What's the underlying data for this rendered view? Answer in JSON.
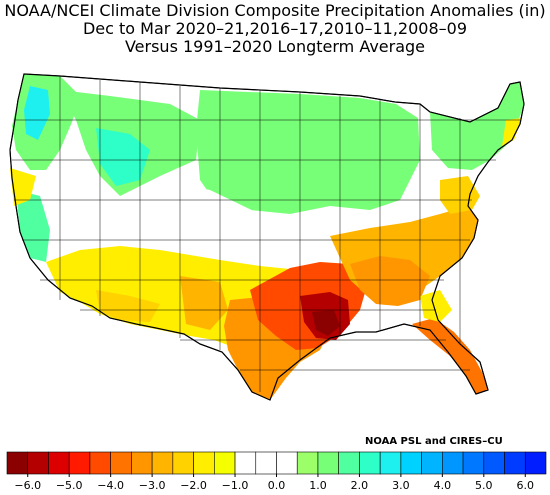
{
  "header": {
    "line1": "NOAA/NCEI Climate Division Composite Precipitation Anomalies (in)",
    "line2": "Dec to Mar  2020–21,2016–17,2010–11,2008–09",
    "line3": "Versus 1991–2020 Longterm Average"
  },
  "credit": "NOAA PSL and CIRES–CU",
  "legend": {
    "tick_labels": [
      "−6.0",
      "−5.0",
      "−4.0",
      "−3.0",
      "−2.0",
      "−1.0",
      "0.0",
      "1.0",
      "2.0",
      "3.0",
      "4.0",
      "5.0",
      "6.0"
    ],
    "bins": [
      {
        "min": -6.5,
        "max": -6.0,
        "color": "#8b0000"
      },
      {
        "min": -6.0,
        "max": -5.5,
        "color": "#b40000"
      },
      {
        "min": -5.5,
        "max": -5.0,
        "color": "#dc0000"
      },
      {
        "min": -5.0,
        "max": -4.5,
        "color": "#ff1a00"
      },
      {
        "min": -4.5,
        "max": -4.0,
        "color": "#ff4a00"
      },
      {
        "min": -4.0,
        "max": -3.5,
        "color": "#ff7300"
      },
      {
        "min": -3.5,
        "max": -3.0,
        "color": "#ff9600"
      },
      {
        "min": -3.0,
        "max": -2.5,
        "color": "#ffb400"
      },
      {
        "min": -2.5,
        "max": -2.0,
        "color": "#ffd200"
      },
      {
        "min": -2.0,
        "max": -1.5,
        "color": "#ffee00"
      },
      {
        "min": -1.5,
        "max": -1.0,
        "color": "#f5ff00"
      },
      {
        "min": -1.0,
        "max": -0.5,
        "color": "#ffffff"
      },
      {
        "min": -0.5,
        "max": 0.0,
        "color": "#ffffff"
      },
      {
        "min": 0.0,
        "max": 0.5,
        "color": "#ffffff"
      },
      {
        "min": 0.5,
        "max": 1.0,
        "color": "#9cff6a"
      },
      {
        "min": 1.0,
        "max": 1.5,
        "color": "#78ff78"
      },
      {
        "min": 1.5,
        "max": 2.0,
        "color": "#50ffa0"
      },
      {
        "min": 2.0,
        "max": 2.5,
        "color": "#2effc8"
      },
      {
        "min": 2.5,
        "max": 3.0,
        "color": "#1ef0f0"
      },
      {
        "min": 3.0,
        "max": 3.5,
        "color": "#00d2ff"
      },
      {
        "min": 3.5,
        "max": 4.0,
        "color": "#00b4ff"
      },
      {
        "min": 4.0,
        "max": 4.5,
        "color": "#0096ff"
      },
      {
        "min": 4.5,
        "max": 5.0,
        "color": "#0078ff"
      },
      {
        "min": 5.0,
        "max": 5.5,
        "color": "#005aff"
      },
      {
        "min": 5.5,
        "max": 6.0,
        "color": "#003cff"
      },
      {
        "min": 6.0,
        "max": 6.5,
        "color": "#001eff"
      }
    ]
  },
  "map_regions": [
    {
      "name": "southeast-dry-core",
      "color": "#8b0000"
    },
    {
      "name": "southern-plains-dry",
      "color": "#ff4a00"
    },
    {
      "name": "southeast-dry",
      "color": "#ff9600"
    },
    {
      "name": "southwest-dry",
      "color": "#ffee00"
    },
    {
      "name": "northwest-wet",
      "color": "#1ef0f0"
    },
    {
      "name": "northern-wet",
      "color": "#78ff78"
    }
  ]
}
